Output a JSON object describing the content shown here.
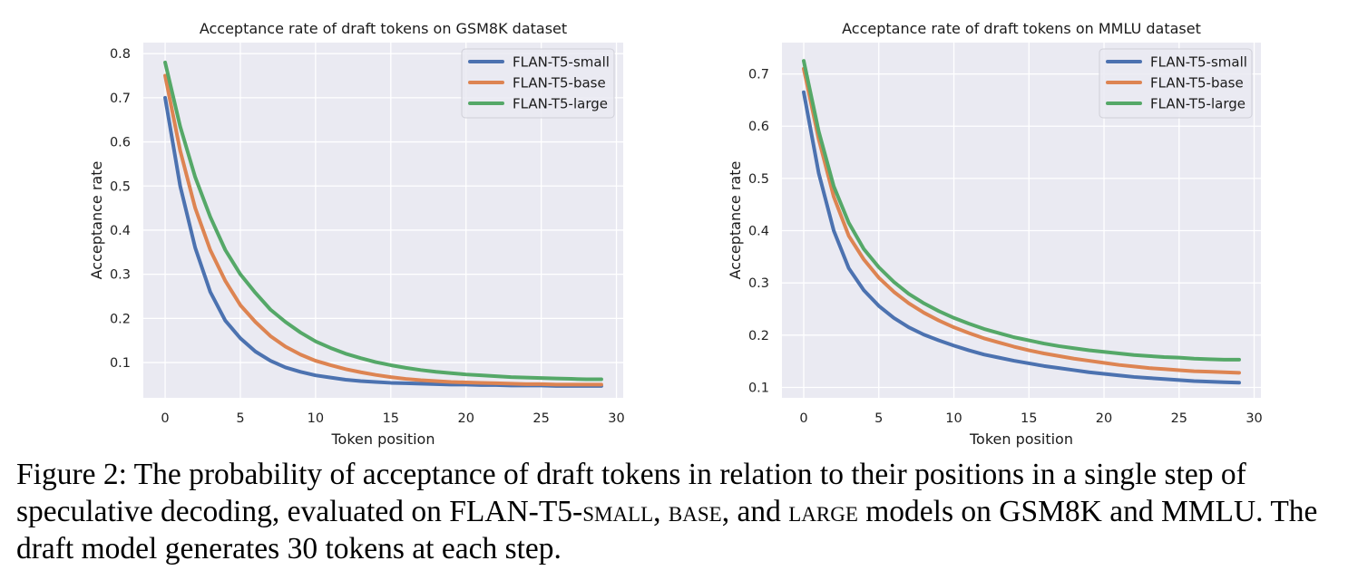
{
  "chart_data": [
    {
      "type": "line",
      "title": "Acceptance rate of draft tokens on GSM8K dataset",
      "xlabel": "Token position",
      "ylabel": "Acceptance rate",
      "xlim": [
        -1.45,
        30.45
      ],
      "ylim": [
        0.02,
        0.825
      ],
      "xticks": [
        0,
        5,
        10,
        15,
        20,
        25,
        30
      ],
      "yticks": [
        0.1,
        0.2,
        0.3,
        0.4,
        0.5,
        0.6,
        0.7,
        0.8
      ],
      "grid": true,
      "legend_position": "top-right",
      "x": [
        0,
        1,
        2,
        3,
        4,
        5,
        6,
        7,
        8,
        9,
        10,
        11,
        12,
        13,
        14,
        15,
        16,
        17,
        18,
        19,
        20,
        21,
        22,
        23,
        24,
        25,
        26,
        27,
        28,
        29
      ],
      "series": [
        {
          "name": "FLAN-T5-small",
          "color": "#4c72b0",
          "values": [
            0.7,
            0.5,
            0.36,
            0.26,
            0.195,
            0.155,
            0.125,
            0.104,
            0.089,
            0.079,
            0.071,
            0.066,
            0.061,
            0.058,
            0.056,
            0.054,
            0.053,
            0.052,
            0.051,
            0.05,
            0.05,
            0.049,
            0.049,
            0.048,
            0.048,
            0.048,
            0.047,
            0.047,
            0.047,
            0.047
          ]
        },
        {
          "name": "FLAN-T5-base",
          "color": "#dd8452",
          "values": [
            0.75,
            0.58,
            0.45,
            0.355,
            0.285,
            0.23,
            0.192,
            0.16,
            0.136,
            0.118,
            0.104,
            0.094,
            0.085,
            0.078,
            0.072,
            0.067,
            0.063,
            0.06,
            0.058,
            0.056,
            0.055,
            0.054,
            0.053,
            0.052,
            0.051,
            0.051,
            0.05,
            0.05,
            0.05,
            0.05
          ]
        },
        {
          "name": "FLAN-T5-large",
          "color": "#55a868",
          "values": [
            0.78,
            0.635,
            0.52,
            0.43,
            0.355,
            0.3,
            0.258,
            0.22,
            0.192,
            0.168,
            0.148,
            0.133,
            0.12,
            0.11,
            0.101,
            0.094,
            0.088,
            0.083,
            0.079,
            0.076,
            0.073,
            0.071,
            0.069,
            0.067,
            0.066,
            0.065,
            0.064,
            0.063,
            0.062,
            0.062
          ]
        }
      ]
    },
    {
      "type": "line",
      "title": "Acceptance rate of draft tokens on MMLU dataset",
      "xlabel": "Token position",
      "ylabel": "Acceptance rate",
      "xlim": [
        -1.45,
        30.45
      ],
      "ylim": [
        0.08,
        0.76
      ],
      "xticks": [
        0,
        5,
        10,
        15,
        20,
        25,
        30
      ],
      "yticks": [
        0.1,
        0.2,
        0.3,
        0.4,
        0.5,
        0.6,
        0.7
      ],
      "grid": true,
      "legend_position": "top-right",
      "x": [
        0,
        1,
        2,
        3,
        4,
        5,
        6,
        7,
        8,
        9,
        10,
        11,
        12,
        13,
        14,
        15,
        16,
        17,
        18,
        19,
        20,
        21,
        22,
        23,
        24,
        25,
        26,
        27,
        28,
        29
      ],
      "series": [
        {
          "name": "FLAN-T5-small",
          "color": "#4c72b0",
          "values": [
            0.665,
            0.51,
            0.4,
            0.328,
            0.286,
            0.256,
            0.233,
            0.215,
            0.201,
            0.19,
            0.18,
            0.171,
            0.163,
            0.157,
            0.151,
            0.146,
            0.141,
            0.137,
            0.133,
            0.129,
            0.126,
            0.123,
            0.12,
            0.118,
            0.116,
            0.114,
            0.112,
            0.111,
            0.11,
            0.109
          ]
        },
        {
          "name": "FLAN-T5-base",
          "color": "#dd8452",
          "values": [
            0.71,
            0.575,
            0.465,
            0.39,
            0.345,
            0.31,
            0.283,
            0.261,
            0.243,
            0.228,
            0.215,
            0.204,
            0.194,
            0.186,
            0.178,
            0.171,
            0.165,
            0.16,
            0.155,
            0.151,
            0.147,
            0.143,
            0.14,
            0.137,
            0.135,
            0.133,
            0.131,
            0.13,
            0.129,
            0.128
          ]
        },
        {
          "name": "FLAN-T5-large",
          "color": "#55a868",
          "values": [
            0.725,
            0.59,
            0.485,
            0.415,
            0.365,
            0.33,
            0.302,
            0.279,
            0.261,
            0.246,
            0.233,
            0.222,
            0.212,
            0.204,
            0.196,
            0.19,
            0.184,
            0.179,
            0.175,
            0.171,
            0.168,
            0.165,
            0.162,
            0.16,
            0.158,
            0.157,
            0.155,
            0.154,
            0.153,
            0.153
          ]
        }
      ]
    }
  ],
  "caption": {
    "p1": "Figure 2: The probability of acceptance of draft tokens in relation to their positions in a single step of speculative decoding, evaluated on FLAN-T5-",
    "small": "small",
    "p2": ", ",
    "base": "base",
    "p3": ", and ",
    "large": "large",
    "p4": " models on GSM8K and MMLU. The draft model generates 30 tokens at each step."
  }
}
